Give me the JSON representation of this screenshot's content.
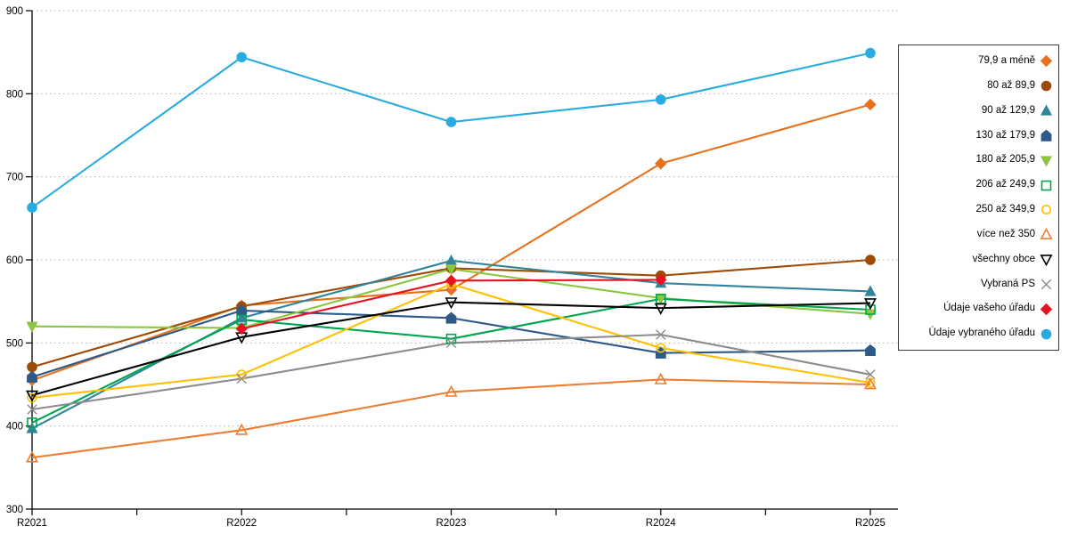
{
  "chart_data": {
    "type": "line",
    "categories": [
      "R2021",
      "R2022",
      "R2023",
      "R2024",
      "R2025"
    ],
    "ylim": [
      300,
      900
    ],
    "ytick_step": 100,
    "grid": "horizontal-dotted",
    "legend_position": "right",
    "series": [
      {
        "name": "79,9 a méně",
        "color": "#E8721C",
        "marker": "diamond",
        "fill": "filled",
        "values": [
          455,
          545,
          564,
          716,
          787
        ]
      },
      {
        "name": "80 až 89,9",
        "color": "#9C4A06",
        "marker": "circle",
        "fill": "filled",
        "values": [
          471,
          544,
          590,
          581,
          600
        ]
      },
      {
        "name": "90 až 129,9",
        "color": "#31849B",
        "marker": "triangle-up",
        "fill": "filled",
        "values": [
          397,
          530,
          599,
          572,
          562
        ]
      },
      {
        "name": "130 až 179,9",
        "color": "#2D5A87",
        "marker": "pentagon",
        "fill": "filled",
        "values": [
          459,
          539,
          530,
          488,
          491
        ]
      },
      {
        "name": "180 až 205,9",
        "color": "#8CC540",
        "marker": "triangle-down",
        "fill": "filled",
        "values": [
          520,
          518,
          589,
          554,
          535
        ]
      },
      {
        "name": "206 až 249,9",
        "color": "#00A550",
        "marker": "square",
        "fill": "hollow",
        "values": [
          404,
          528,
          505,
          553,
          540
        ]
      },
      {
        "name": "250 až 349,9",
        "color": "#FFC000",
        "marker": "circle",
        "fill": "hollow",
        "values": [
          434,
          462,
          571,
          494,
          452
        ]
      },
      {
        "name": "více než 350",
        "color": "#ED7D31",
        "marker": "triangle-up",
        "fill": "hollow",
        "values": [
          362,
          395,
          441,
          456,
          450
        ]
      },
      {
        "name": "všechny obce",
        "color": "#000000",
        "marker": "triangle-down",
        "fill": "hollow",
        "values": [
          437,
          507,
          549,
          542,
          548
        ]
      },
      {
        "name": "Vybraná PS",
        "color": "#8C8C8C",
        "marker": "x",
        "fill": "hollow",
        "values": [
          420,
          457,
          500,
          510,
          462
        ]
      },
      {
        "name": "Údaje vašeho úřadu",
        "color": "#E81123",
        "marker": "diamond",
        "fill": "filled",
        "values": [
          null,
          517,
          575,
          576,
          null
        ]
      },
      {
        "name": "Údaje vybraného úřadu",
        "color": "#29ABE2",
        "marker": "circle",
        "fill": "filled",
        "values": [
          663,
          844,
          766,
          793,
          849
        ]
      }
    ]
  }
}
